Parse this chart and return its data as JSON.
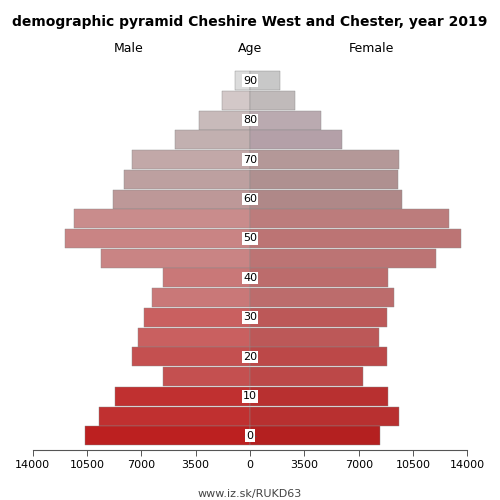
{
  "title": "demographic pyramid Cheshire West and Chester, year 2019",
  "age_groups": [
    90,
    85,
    80,
    75,
    70,
    65,
    60,
    55,
    50,
    45,
    40,
    35,
    30,
    25,
    20,
    15,
    10,
    5,
    0
  ],
  "male": [
    950,
    1800,
    3300,
    4800,
    7600,
    8100,
    8800,
    11300,
    11900,
    9600,
    5600,
    6300,
    6800,
    7200,
    7600,
    5600,
    8700,
    9700,
    10600
  ],
  "female": [
    1900,
    2900,
    4600,
    5900,
    9600,
    9500,
    9800,
    12800,
    13600,
    12000,
    8900,
    9300,
    8800,
    8300,
    8800,
    7300,
    8900,
    9600,
    8400
  ],
  "male_colors": [
    "#dcdcdc",
    "#d3c8c8",
    "#c8baba",
    "#c2b0b0",
    "#c2a8a8",
    "#bda0a0",
    "#bd9898",
    "#c98c8c",
    "#c98484",
    "#c98484",
    "#c97878",
    "#c97878",
    "#c96060",
    "#c96060",
    "#c45050",
    "#c45050",
    "#c03030",
    "#c03030",
    "#bc2020"
  ],
  "female_colors": [
    "#c8c8c8",
    "#c0baba",
    "#baaab0",
    "#b4a0a8",
    "#b49898",
    "#af9090",
    "#af8888",
    "#bc7c7c",
    "#bc7474",
    "#bc7474",
    "#bc6c6c",
    "#bc6c6c",
    "#bc5858",
    "#bc5858",
    "#bc4848",
    "#bc4848",
    "#b83030",
    "#b83030",
    "#b42020"
  ],
  "age_yticks": [
    0,
    10,
    20,
    30,
    40,
    50,
    60,
    70,
    80,
    90
  ],
  "xlim": 14000,
  "xtick_positions": [
    -14000,
    -10500,
    -7000,
    -3500,
    0,
    3500,
    7000,
    10500,
    14000
  ],
  "xtick_labels": [
    "14000",
    "10500",
    "7000",
    "3500",
    "0",
    "3500",
    "7000",
    "10500",
    "14000"
  ],
  "title_fontsize": 10,
  "tick_fontsize": 8,
  "label_fontsize": 9,
  "footer": "www.iz.sk/RUKD63",
  "fig_width": 5.0,
  "fig_height": 5.0,
  "dpi": 100
}
